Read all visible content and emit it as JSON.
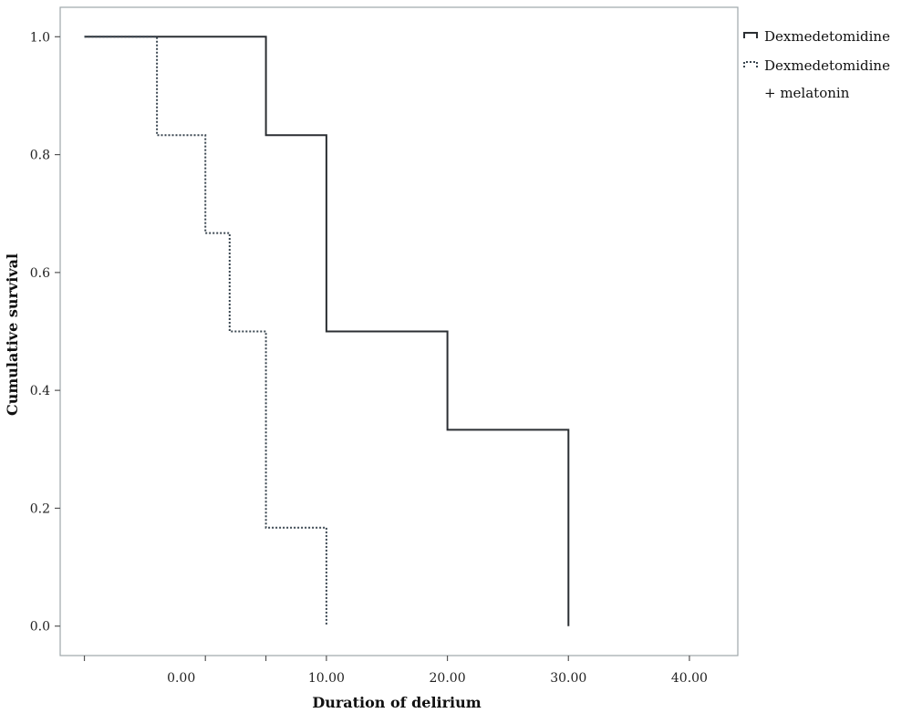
{
  "chart_data": {
    "type": "line",
    "step": true,
    "title": "",
    "xlabel": "Duration of delirium",
    "ylabel": "Cumulative survival",
    "xlim": [
      -12,
      44
    ],
    "ylim": [
      -0.05,
      1.05
    ],
    "x_tick_positions": [
      -10,
      0,
      5,
      10,
      20,
      30,
      40
    ],
    "x_tick_labels": [
      {
        "x": -2,
        "label": "0.00"
      },
      {
        "x": 10,
        "label": "10.00"
      },
      {
        "x": 20,
        "label": "20.00"
      },
      {
        "x": 30,
        "label": "30.00"
      },
      {
        "x": 40,
        "label": "40.00"
      }
    ],
    "y_ticks": [
      {
        "y": 0.0,
        "label": "0.0"
      },
      {
        "y": 0.2,
        "label": "0.2"
      },
      {
        "y": 0.4,
        "label": "0.4"
      },
      {
        "y": 0.6,
        "label": "0.6"
      },
      {
        "y": 0.8,
        "label": "0.8"
      },
      {
        "y": 1.0,
        "label": "1.0"
      }
    ],
    "series": [
      {
        "name": "Dexmedetomidine",
        "color": "#2b2f33",
        "style": "solid",
        "points": [
          {
            "x": -10,
            "y": 1.0
          },
          {
            "x": 5,
            "y": 1.0
          },
          {
            "x": 5,
            "y": 0.833
          },
          {
            "x": 10,
            "y": 0.833
          },
          {
            "x": 10,
            "y": 0.5
          },
          {
            "x": 20,
            "y": 0.5
          },
          {
            "x": 20,
            "y": 0.333
          },
          {
            "x": 30,
            "y": 0.333
          },
          {
            "x": 30,
            "y": 0.0
          }
        ]
      },
      {
        "name": "Dexmedetomidine\n+ melatonin",
        "color": "#3a4650",
        "style": "dotted",
        "points": [
          {
            "x": -10,
            "y": 1.0
          },
          {
            "x": -4,
            "y": 1.0
          },
          {
            "x": -4,
            "y": 0.833
          },
          {
            "x": 0,
            "y": 0.833
          },
          {
            "x": 0,
            "y": 0.667
          },
          {
            "x": 2,
            "y": 0.667
          },
          {
            "x": 2,
            "y": 0.5
          },
          {
            "x": 5,
            "y": 0.5
          },
          {
            "x": 5,
            "y": 0.167
          },
          {
            "x": 10,
            "y": 0.167
          },
          {
            "x": 10,
            "y": 0.0
          }
        ]
      }
    ],
    "legend_placement": "top-right",
    "legend": {
      "entries": [
        {
          "label_line1": "Dexmedetomidine",
          "label_line2": ""
        },
        {
          "label_line1": "Dexmedetomidine",
          "label_line2": "+ melatonin"
        }
      ]
    },
    "grid": false
  }
}
